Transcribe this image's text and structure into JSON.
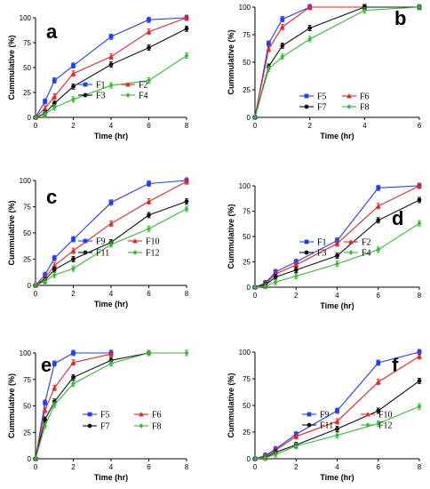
{
  "colors": {
    "blue": "#1f3fff",
    "red": "#ee2222",
    "black": "#111111",
    "green": "#33bb33"
  },
  "chart_data": [
    {
      "letter": "a",
      "type": "line",
      "xlabel": "Time (hr)",
      "ylabel": "Cummulative (%)",
      "xlim": [
        0,
        8
      ],
      "ylim": [
        0,
        100
      ],
      "xticks": [
        0,
        2,
        4,
        6,
        8
      ],
      "yticks": [
        0,
        25,
        50,
        75,
        100
      ],
      "legend_position": "bottom-right",
      "series": [
        {
          "name": "F1",
          "color": "blue",
          "marker": "square",
          "x": [
            0,
            0.5,
            1,
            2,
            4,
            6,
            8
          ],
          "y": [
            0,
            16,
            37,
            52,
            81,
            98,
            100
          ]
        },
        {
          "name": "F2",
          "color": "red",
          "marker": "triangle",
          "x": [
            0,
            0.5,
            1,
            2,
            4,
            6,
            8
          ],
          "y": [
            0,
            9,
            21,
            44,
            61,
            86,
            100
          ]
        },
        {
          "name": "F3",
          "color": "black",
          "marker": "circle",
          "x": [
            0,
            0.5,
            1,
            2,
            4,
            6,
            8
          ],
          "y": [
            0,
            4,
            14,
            31,
            53,
            70,
            89
          ]
        },
        {
          "name": "F4",
          "color": "green",
          "marker": "diamond",
          "x": [
            0,
            0.5,
            1,
            2,
            4,
            6,
            8
          ],
          "y": [
            0,
            3,
            10,
            18,
            32,
            37,
            62
          ]
        }
      ]
    },
    {
      "letter": "b",
      "type": "line",
      "xlabel": "Time (hr)",
      "ylabel": "Cummulative (%)",
      "xlim": [
        0,
        6
      ],
      "ylim": [
        0,
        100
      ],
      "xticks": [
        0,
        2,
        4,
        6
      ],
      "yticks": [
        0,
        25,
        50,
        75,
        100
      ],
      "legend_position": "bottom-right",
      "series": [
        {
          "name": "F5",
          "color": "blue",
          "marker": "square",
          "x": [
            0,
            0.5,
            1,
            2,
            4,
            6
          ],
          "y": [
            0,
            67,
            89,
            100,
            100,
            100
          ]
        },
        {
          "name": "F6",
          "color": "red",
          "marker": "triangle",
          "x": [
            0,
            0.5,
            1,
            2,
            4,
            6
          ],
          "y": [
            0,
            62,
            82,
            100,
            100,
            100
          ]
        },
        {
          "name": "F7",
          "color": "black",
          "marker": "circle",
          "x": [
            0,
            0.5,
            1,
            2,
            4,
            6
          ],
          "y": [
            0,
            46,
            65,
            81,
            100,
            100
          ]
        },
        {
          "name": "F8",
          "color": "green",
          "marker": "diamond",
          "x": [
            0,
            0.5,
            1,
            2,
            4,
            6
          ],
          "y": [
            0,
            44,
            55,
            71,
            97,
            100
          ]
        }
      ]
    },
    {
      "letter": "c",
      "type": "line",
      "xlabel": "Time (hr)",
      "ylabel": "Cummulative (%)",
      "xlim": [
        0,
        8
      ],
      "ylim": [
        0,
        100
      ],
      "xticks": [
        0,
        2,
        4,
        6,
        8
      ],
      "yticks": [
        0,
        25,
        50,
        75,
        100
      ],
      "legend_position": "bottom-right",
      "series": [
        {
          "name": "F9",
          "color": "blue",
          "marker": "square",
          "x": [
            0,
            0.5,
            1,
            2,
            4,
            6,
            8
          ],
          "y": [
            0,
            10,
            26,
            44,
            79,
            97,
            100
          ]
        },
        {
          "name": "F10",
          "color": "red",
          "marker": "triangle",
          "x": [
            0,
            0.5,
            1,
            2,
            4,
            6,
            8
          ],
          "y": [
            0,
            7,
            19,
            33,
            59,
            80,
            99
          ]
        },
        {
          "name": "F11",
          "color": "black",
          "marker": "circle",
          "x": [
            0,
            0.5,
            1,
            2,
            4,
            6,
            8
          ],
          "y": [
            0,
            5,
            15,
            25,
            41,
            67,
            80
          ]
        },
        {
          "name": "F12",
          "color": "green",
          "marker": "diamond",
          "x": [
            0,
            0.5,
            1,
            2,
            4,
            6,
            8
          ],
          "y": [
            0,
            4,
            10,
            16,
            39,
            54,
            73
          ]
        }
      ]
    },
    {
      "letter": "d",
      "type": "line",
      "xlabel": "Time (hr)",
      "ylabel": "Cummulative (%)",
      "xlim": [
        0,
        8
      ],
      "ylim": [
        0,
        100
      ],
      "xticks": [
        0,
        2,
        4,
        6,
        8
      ],
      "yticks": [
        0,
        25,
        50,
        75,
        100
      ],
      "legend_position": "bottom-right",
      "series": [
        {
          "name": "F1",
          "color": "blue",
          "marker": "square",
          "x": [
            0,
            0.5,
            1,
            2,
            4,
            6,
            8
          ],
          "y": [
            0,
            4,
            15,
            25,
            46,
            98,
            100
          ]
        },
        {
          "name": "F2",
          "color": "red",
          "marker": "triangle",
          "x": [
            0,
            0.5,
            1,
            2,
            4,
            6,
            8
          ],
          "y": [
            0,
            3,
            13,
            22,
            43,
            80,
            100
          ]
        },
        {
          "name": "F3",
          "color": "black",
          "marker": "circle",
          "x": [
            0,
            0.5,
            1,
            2,
            4,
            6,
            8
          ],
          "y": [
            0,
            2,
            10,
            17,
            31,
            66,
            86
          ]
        },
        {
          "name": "F4",
          "color": "green",
          "marker": "diamond",
          "x": [
            0,
            0.5,
            1,
            2,
            4,
            6,
            8
          ],
          "y": [
            0,
            1,
            5,
            11,
            23,
            37,
            63
          ]
        }
      ]
    },
    {
      "letter": "e",
      "type": "line",
      "xlabel": "Time (hr)",
      "ylabel": "Cummulative (%)",
      "xlim": [
        0,
        8
      ],
      "ylim": [
        0,
        100
      ],
      "xticks": [
        0,
        2,
        4,
        6,
        8
      ],
      "yticks": [
        0,
        25,
        50,
        75,
        100
      ],
      "legend_position": "bottom-left",
      "series": [
        {
          "name": "F5",
          "color": "blue",
          "marker": "square",
          "x": [
            0,
            0.5,
            1,
            2,
            4
          ],
          "y": [
            0,
            53,
            90,
            100,
            100
          ]
        },
        {
          "name": "F6",
          "color": "red",
          "marker": "triangle",
          "x": [
            0,
            0.5,
            1,
            2,
            4
          ],
          "y": [
            0,
            46,
            67,
            91,
            99
          ]
        },
        {
          "name": "F7",
          "color": "black",
          "marker": "circle",
          "x": [
            0,
            0.5,
            1,
            2,
            4,
            6
          ],
          "y": [
            0,
            37,
            54,
            77,
            93,
            100
          ]
        },
        {
          "name": "F8",
          "color": "green",
          "marker": "diamond",
          "x": [
            0,
            0.5,
            1,
            2,
            4,
            6,
            8
          ],
          "y": [
            0,
            31,
            51,
            71,
            90,
            100,
            100
          ]
        }
      ]
    },
    {
      "letter": "f",
      "type": "line",
      "xlabel": "Time (hr)",
      "ylabel": "Cummulative (%)",
      "xlim": [
        0,
        8
      ],
      "ylim": [
        0,
        100
      ],
      "xticks": [
        0,
        2,
        4,
        6,
        8
      ],
      "yticks": [
        0,
        25,
        50,
        75,
        100
      ],
      "legend_position": "bottom-right",
      "series": [
        {
          "name": "F9",
          "color": "blue",
          "marker": "square",
          "x": [
            0,
            0.5,
            1,
            2,
            4,
            6,
            8
          ],
          "y": [
            0,
            3,
            9,
            23,
            45,
            90,
            100
          ]
        },
        {
          "name": "F10",
          "color": "red",
          "marker": "triangle",
          "x": [
            0,
            0.5,
            1,
            2,
            4,
            6,
            8
          ],
          "y": [
            0,
            2,
            8,
            21,
            35,
            72,
            96
          ]
        },
        {
          "name": "F11",
          "color": "black",
          "marker": "circle",
          "x": [
            0,
            0.5,
            1,
            2,
            4,
            6,
            8
          ],
          "y": [
            0,
            1,
            6,
            13,
            28,
            45,
            73
          ]
        },
        {
          "name": "F12",
          "color": "green",
          "marker": "diamond",
          "x": [
            0,
            0.5,
            1,
            2,
            4,
            6,
            8
          ],
          "y": [
            0,
            1,
            4,
            12,
            22,
            33,
            49
          ]
        }
      ]
    }
  ]
}
